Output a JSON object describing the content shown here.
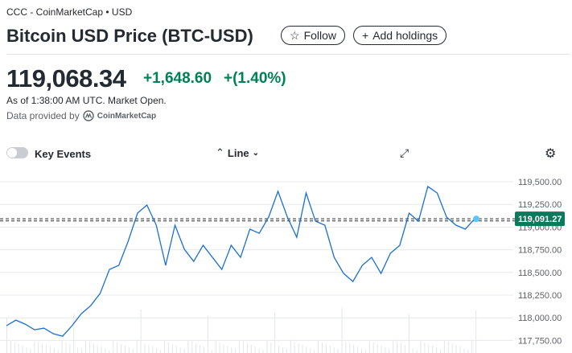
{
  "header": {
    "breadcrumb": "CCC - CoinMarketCap • USD",
    "title": "Bitcoin USD Price (BTC-USD)",
    "follow_label": "Follow",
    "add_holdings_label": "Add holdings"
  },
  "quote": {
    "price": "119,068.34",
    "change": "+1,648.60",
    "change_pct": "+(1.40%)",
    "as_of": "As of 1:38:00 AM UTC. Market Open.",
    "provider_prefix": "Data provided by",
    "provider": "CoinMarketCap",
    "positive_color": "#008055"
  },
  "controls": {
    "key_events_label": "Key Events",
    "key_events_on": false,
    "chart_type": "Line",
    "icons": [
      "expand-icon",
      "gear-icon"
    ]
  },
  "chart_data": {
    "type": "line",
    "line_color": "#1a6fd4",
    "ylim": [
      117700,
      119600
    ],
    "y_ticks": [
      "119,500.00",
      "119,250.00",
      "119,000.00",
      "118,750.00",
      "118,500.00",
      "118,250.00",
      "118,000.00",
      "117,750.00"
    ],
    "y_tick_values": [
      119500,
      119250,
      119000,
      118750,
      118500,
      118250,
      118000,
      117750
    ],
    "current_label": "119,091.27",
    "current_value": 119091.27,
    "reference_value": 119068.34,
    "values": [
      117912,
      117974,
      117930,
      117868,
      117886,
      117824,
      117797,
      117912,
      118045,
      118134,
      118267,
      118533,
      118578,
      118844,
      119154,
      119243,
      119021,
      118578,
      119021,
      118755,
      118622,
      118799,
      118666,
      118533,
      118799,
      118666,
      118977,
      118932,
      119110,
      119394,
      119110,
      118888,
      119376,
      119065,
      119021,
      118666,
      118489,
      118400,
      118578,
      118666,
      118489,
      118711,
      118799,
      119154,
      119065,
      119447,
      119376,
      119110,
      119021,
      118977,
      119091
    ]
  }
}
